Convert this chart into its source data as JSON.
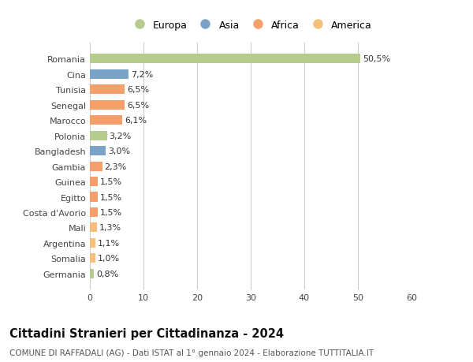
{
  "categories": [
    "Germania",
    "Somalia",
    "Argentina",
    "Mali",
    "Costa d'Avorio",
    "Egitto",
    "Guinea",
    "Gambia",
    "Bangladesh",
    "Polonia",
    "Marocco",
    "Senegal",
    "Tunisia",
    "Cina",
    "Romania"
  ],
  "values": [
    0.8,
    1.0,
    1.1,
    1.3,
    1.5,
    1.5,
    1.5,
    2.3,
    3.0,
    3.2,
    6.1,
    6.5,
    6.5,
    7.2,
    50.5
  ],
  "labels": [
    "0,8%",
    "1,0%",
    "1,1%",
    "1,3%",
    "1,5%",
    "1,5%",
    "1,5%",
    "2,3%",
    "3,0%",
    "3,2%",
    "6,1%",
    "6,5%",
    "6,5%",
    "7,2%",
    "50,5%"
  ],
  "colors": [
    "#b5cc8e",
    "#f5c07a",
    "#f5c07a",
    "#f5c07a",
    "#f5a06a",
    "#f5a06a",
    "#f5a06a",
    "#f5a06a",
    "#7ba3c8",
    "#b5cc8e",
    "#f5a06a",
    "#f5a06a",
    "#f5a06a",
    "#7ba3c8",
    "#b5cc8e"
  ],
  "legend_items": [
    {
      "label": "Europa",
      "color": "#b5cc8e"
    },
    {
      "label": "Asia",
      "color": "#7ba3c8"
    },
    {
      "label": "Africa",
      "color": "#f5a06a"
    },
    {
      "label": "America",
      "color": "#f5c07a"
    }
  ],
  "xlim": [
    0,
    60
  ],
  "xticks": [
    0,
    10,
    20,
    30,
    40,
    50,
    60
  ],
  "title": "Cittadini Stranieri per Cittadinanza - 2024",
  "subtitle": "COMUNE DI RAFFADALI (AG) - Dati ISTAT al 1° gennaio 2024 - Elaborazione TUTTITALIA.IT",
  "background_color": "#ffffff",
  "grid_color": "#cccccc",
  "bar_height": 0.62,
  "label_fontsize": 8.0,
  "tick_fontsize": 8.0,
  "title_fontsize": 10.5,
  "subtitle_fontsize": 7.5
}
